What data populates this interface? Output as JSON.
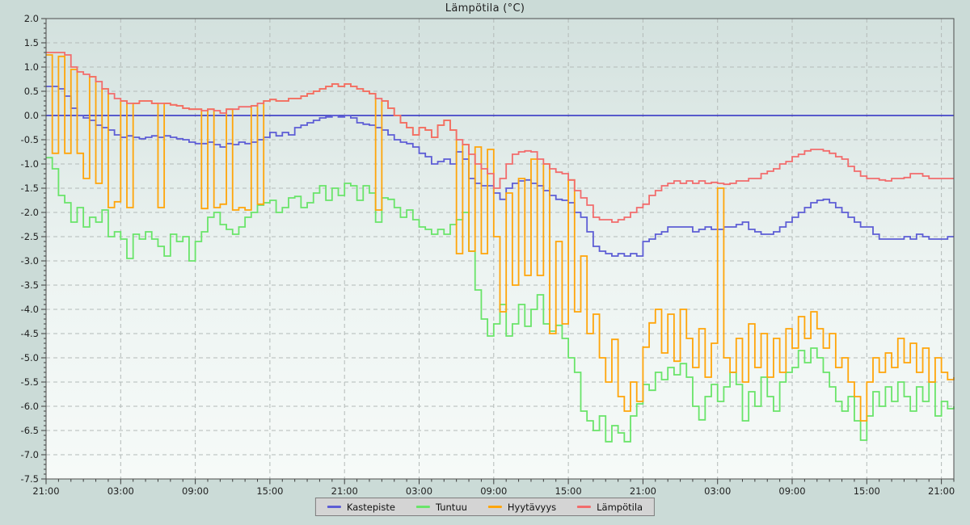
{
  "title": "Lämpötila (°C)",
  "chart_data": {
    "type": "line",
    "title": "Lämpötila (°C)",
    "x_axis": "time (hourly ticks, labels every 6 h, span = 3 days)",
    "x_tick_labels": [
      "21:00",
      "03:00",
      "09:00",
      "15:00",
      "21:00",
      "03:00",
      "09:00",
      "15:00",
      "21:00",
      "03:00",
      "09:00",
      "15:00",
      "21:00"
    ],
    "y_tick_labels": [
      "2.0",
      "1.5",
      "1.0",
      "0.5",
      "0.0",
      "-0.5",
      "-1.0",
      "-1.5",
      "-2.0",
      "-2.5",
      "-3.0",
      "-3.5",
      "-4.0",
      "-4.5",
      "-5.0",
      "-5.5",
      "-6.0",
      "-6.5",
      "-7.0",
      "-7.5"
    ],
    "ylim": [
      -7.5,
      2.0
    ],
    "x_range": [
      0,
      73
    ],
    "x_major_tick_hours": 6,
    "step_hours": 0.5,
    "grid": true,
    "zero_line_value": 0.0,
    "zero_line_color": "#2b2bc4",
    "legend_position": "bottom-center",
    "interpolation": "step-after",
    "series": [
      {
        "name": "Kastepiste",
        "color": "#5d5dd5",
        "values": [
          0.6,
          0.6,
          0.55,
          0.4,
          0.15,
          0.0,
          -0.05,
          -0.1,
          -0.2,
          -0.25,
          -0.3,
          -0.4,
          -0.45,
          -0.42,
          -0.45,
          -0.48,
          -0.45,
          -0.42,
          -0.45,
          -0.42,
          -0.45,
          -0.48,
          -0.5,
          -0.55,
          -0.58,
          -0.58,
          -0.55,
          -0.6,
          -0.65,
          -0.58,
          -0.6,
          -0.55,
          -0.58,
          -0.55,
          -0.5,
          -0.45,
          -0.35,
          -0.42,
          -0.35,
          -0.4,
          -0.25,
          -0.2,
          -0.15,
          -0.1,
          -0.05,
          -0.03,
          0.0,
          -0.03,
          0.0,
          -0.05,
          -0.15,
          -0.18,
          -0.2,
          -0.25,
          -0.3,
          -0.4,
          -0.5,
          -0.55,
          -0.58,
          -0.65,
          -0.78,
          -0.85,
          -1.0,
          -0.95,
          -0.9,
          -1.0,
          -0.75,
          -0.9,
          -1.3,
          -1.4,
          -1.45,
          -1.45,
          -1.6,
          -1.73,
          -1.5,
          -1.4,
          -1.35,
          -1.33,
          -1.4,
          -1.45,
          -1.55,
          -1.65,
          -1.73,
          -1.75,
          -1.8,
          -2.0,
          -2.1,
          -2.4,
          -2.7,
          -2.8,
          -2.85,
          -2.9,
          -2.85,
          -2.9,
          -2.85,
          -2.9,
          -2.6,
          -2.55,
          -2.45,
          -2.4,
          -2.3,
          -2.3,
          -2.3,
          -2.3,
          -2.4,
          -2.35,
          -2.3,
          -2.35,
          -2.35,
          -2.3,
          -2.3,
          -2.25,
          -2.2,
          -2.35,
          -2.4,
          -2.45,
          -2.45,
          -2.4,
          -2.3,
          -2.2,
          -2.1,
          -2.0,
          -1.9,
          -1.8,
          -1.75,
          -1.73,
          -1.8,
          -1.9,
          -2.0,
          -2.1,
          -2.2,
          -2.3,
          -2.3,
          -2.45,
          -2.55,
          -2.55,
          -2.55,
          -2.55,
          -2.5,
          -2.55,
          -2.45,
          -2.5,
          -2.55,
          -2.55,
          -2.55,
          -2.5,
          -2.5
        ]
      },
      {
        "name": "Tuntuu",
        "color": "#69e469",
        "values": [
          -0.87,
          -1.1,
          -1.65,
          -1.8,
          -2.2,
          -1.9,
          -2.3,
          -2.1,
          -2.2,
          -1.95,
          -2.5,
          -2.4,
          -2.55,
          -2.95,
          -2.45,
          -2.55,
          -2.4,
          -2.55,
          -2.7,
          -2.9,
          -2.45,
          -2.6,
          -2.5,
          -3.0,
          -2.6,
          -2.4,
          -2.1,
          -2.0,
          -2.25,
          -2.35,
          -2.45,
          -2.3,
          -2.1,
          -2.0,
          -1.85,
          -1.8,
          -1.75,
          -2.0,
          -1.9,
          -1.7,
          -1.67,
          -1.9,
          -1.8,
          -1.6,
          -1.45,
          -1.75,
          -1.5,
          -1.65,
          -1.4,
          -1.45,
          -1.75,
          -1.45,
          -1.6,
          -2.2,
          -1.7,
          -1.73,
          -1.9,
          -2.1,
          -1.95,
          -2.15,
          -2.3,
          -2.35,
          -2.45,
          -2.35,
          -2.45,
          -2.25,
          -2.15,
          -2.0,
          -2.8,
          -3.6,
          -4.2,
          -4.55,
          -4.3,
          -3.9,
          -4.55,
          -4.3,
          -3.9,
          -4.35,
          -4.0,
          -3.7,
          -4.3,
          -4.45,
          -4.33,
          -4.6,
          -5.0,
          -5.3,
          -6.1,
          -6.3,
          -6.5,
          -6.2,
          -6.73,
          -6.4,
          -6.55,
          -6.73,
          -6.2,
          -5.95,
          -5.55,
          -5.67,
          -5.3,
          -5.45,
          -5.2,
          -5.35,
          -5.12,
          -5.4,
          -6.0,
          -6.28,
          -5.8,
          -5.55,
          -5.9,
          -5.6,
          -5.3,
          -5.55,
          -6.3,
          -5.7,
          -6.0,
          -5.4,
          -5.8,
          -6.1,
          -5.5,
          -5.3,
          -5.2,
          -4.85,
          -5.1,
          -4.8,
          -5.0,
          -5.3,
          -5.6,
          -5.9,
          -6.1,
          -5.8,
          -6.3,
          -6.7,
          -6.2,
          -5.7,
          -6.0,
          -5.6,
          -5.9,
          -5.5,
          -5.8,
          -6.1,
          -5.6,
          -5.9,
          -5.5,
          -6.2,
          -5.9,
          -6.05,
          -6.0
        ]
      },
      {
        "name": "Hyytävyys",
        "color": "#ffa50a",
        "values": [
          1.25,
          -0.78,
          1.22,
          -0.78,
          0.95,
          -0.78,
          -1.3,
          0.8,
          -1.4,
          0.55,
          -1.9,
          -1.78,
          0.3,
          -1.9,
          0.25,
          0.3,
          0.3,
          0.25,
          -1.9,
          0.25,
          0.22,
          0.2,
          0.15,
          0.13,
          0.13,
          -1.92,
          0.13,
          -1.9,
          -1.83,
          0.13,
          -1.95,
          -1.9,
          -1.95,
          0.2,
          -1.83,
          0.3,
          0.33,
          0.3,
          0.3,
          0.35,
          0.35,
          0.4,
          0.45,
          0.5,
          0.55,
          0.6,
          0.65,
          0.6,
          0.65,
          0.6,
          0.55,
          0.5,
          0.45,
          -1.95,
          0.3,
          0.15,
          0.0,
          -0.15,
          -0.25,
          -0.4,
          -0.25,
          -0.3,
          -0.45,
          -0.2,
          -0.1,
          -0.3,
          -2.85,
          -0.6,
          -2.8,
          -0.65,
          -2.85,
          -0.7,
          -2.5,
          -4.05,
          -1.6,
          -3.5,
          -1.3,
          -3.3,
          -0.9,
          -3.3,
          -1.0,
          -4.5,
          -2.6,
          -4.3,
          -1.33,
          -4.05,
          -2.9,
          -4.5,
          -4.1,
          -5.0,
          -5.5,
          -4.62,
          -5.8,
          -6.1,
          -5.5,
          -5.9,
          -4.78,
          -4.28,
          -4.0,
          -4.9,
          -4.1,
          -5.07,
          -4.0,
          -4.6,
          -5.2,
          -4.4,
          -5.4,
          -4.7,
          -1.5,
          -5.0,
          -5.3,
          -4.6,
          -5.5,
          -4.3,
          -5.2,
          -4.5,
          -5.4,
          -4.6,
          -5.3,
          -4.4,
          -4.8,
          -4.15,
          -4.6,
          -4.05,
          -4.4,
          -4.8,
          -4.5,
          -5.2,
          -5.0,
          -5.5,
          -5.8,
          -6.3,
          -5.5,
          -5.0,
          -5.3,
          -4.9,
          -5.2,
          -4.6,
          -5.1,
          -4.7,
          -5.3,
          -4.8,
          -5.5,
          -5.0,
          -5.3,
          -5.45,
          -5.4
        ]
      },
      {
        "name": "Lämpötila",
        "color": "#f26c6c",
        "values": [
          1.3,
          1.3,
          1.3,
          1.25,
          1.0,
          0.9,
          0.85,
          0.8,
          0.7,
          0.55,
          0.45,
          0.35,
          0.3,
          0.25,
          0.25,
          0.3,
          0.3,
          0.25,
          0.25,
          0.25,
          0.22,
          0.2,
          0.15,
          0.13,
          0.13,
          0.1,
          0.13,
          0.1,
          0.05,
          0.13,
          0.13,
          0.18,
          0.18,
          0.2,
          0.25,
          0.3,
          0.33,
          0.3,
          0.3,
          0.35,
          0.35,
          0.4,
          0.45,
          0.5,
          0.55,
          0.6,
          0.65,
          0.6,
          0.65,
          0.6,
          0.55,
          0.5,
          0.45,
          0.35,
          0.3,
          0.15,
          0.0,
          -0.15,
          -0.25,
          -0.4,
          -0.25,
          -0.3,
          -0.45,
          -0.2,
          -0.1,
          -0.3,
          -0.5,
          -0.6,
          -0.8,
          -1.0,
          -1.1,
          -1.2,
          -1.5,
          -1.3,
          -1.0,
          -0.8,
          -0.75,
          -0.73,
          -0.75,
          -0.9,
          -1.0,
          -1.1,
          -1.17,
          -1.2,
          -1.33,
          -1.55,
          -1.7,
          -1.85,
          -2.1,
          -2.15,
          -2.15,
          -2.2,
          -2.15,
          -2.1,
          -2.0,
          -1.9,
          -1.83,
          -1.65,
          -1.55,
          -1.45,
          -1.4,
          -1.35,
          -1.4,
          -1.35,
          -1.4,
          -1.35,
          -1.4,
          -1.38,
          -1.4,
          -1.42,
          -1.4,
          -1.35,
          -1.35,
          -1.3,
          -1.3,
          -1.2,
          -1.15,
          -1.1,
          -1.0,
          -0.95,
          -0.85,
          -0.8,
          -0.73,
          -0.7,
          -0.7,
          -0.73,
          -0.78,
          -0.85,
          -0.9,
          -1.05,
          -1.15,
          -1.25,
          -1.3,
          -1.3,
          -1.33,
          -1.35,
          -1.3,
          -1.3,
          -1.28,
          -1.2,
          -1.2,
          -1.25,
          -1.3,
          -1.3,
          -1.3,
          -1.3,
          -1.3
        ]
      }
    ]
  },
  "legend": {
    "items": [
      {
        "label": "Kastepiste",
        "color": "#5d5dd5"
      },
      {
        "label": "Tuntuu",
        "color": "#69e469"
      },
      {
        "label": "Hyytävyys",
        "color": "#ffa50a"
      },
      {
        "label": "Lämpötila",
        "color": "#f26c6c"
      }
    ]
  }
}
